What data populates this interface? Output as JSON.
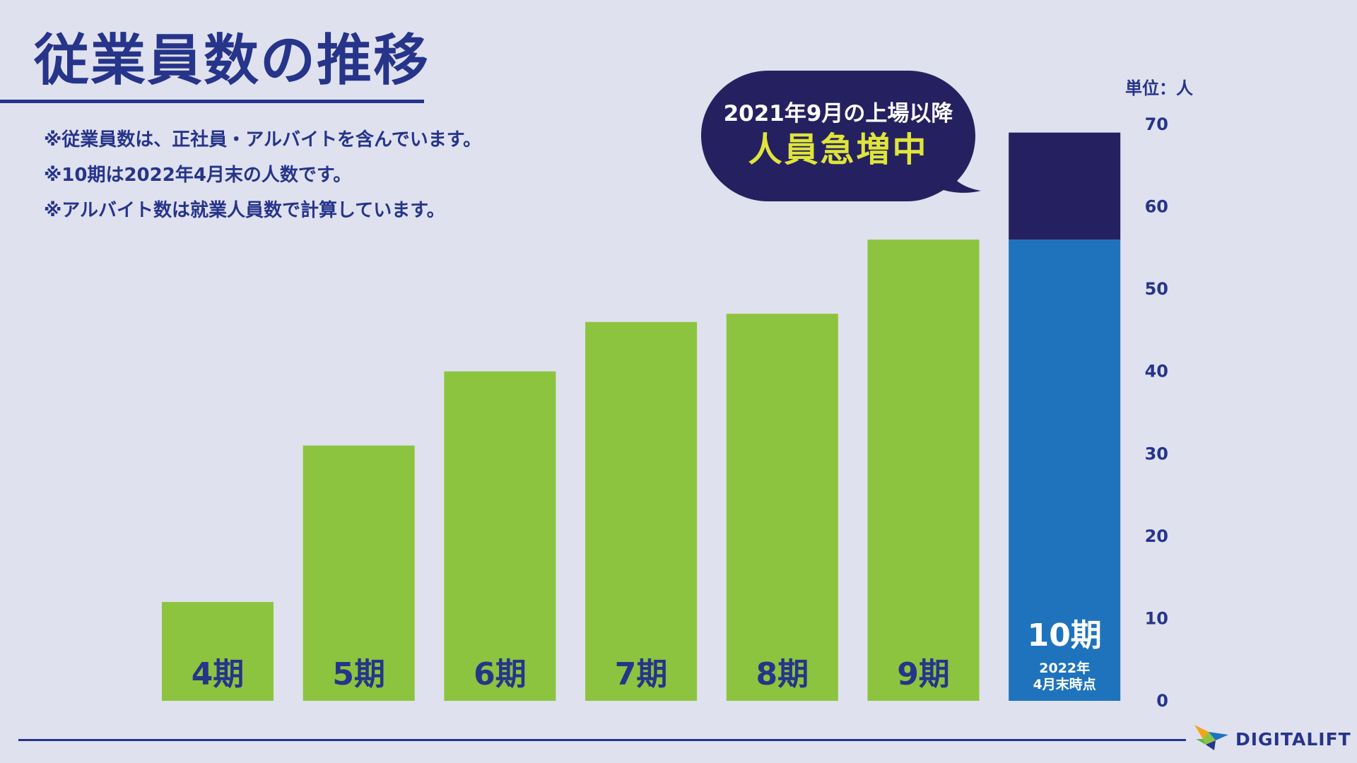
{
  "page": {
    "title": "従業員数の推移",
    "notes": [
      "※従業員数は、正社員・アルバイトを含んでいます。",
      "※10期は2022年4月末の人数です。",
      "※アルバイト数は就業人員数で計算しています。"
    ],
    "callout": {
      "line1": "2021年9月の上場以降",
      "line2": "人員急増中"
    },
    "brand": "DIGITALIFT",
    "logo_icon": "bird-logo-icon"
  },
  "chart_data": {
    "type": "bar",
    "stacked": true,
    "categories": [
      "4期",
      "5期",
      "6期",
      "7期",
      "8期",
      "9期",
      "10期"
    ],
    "category_sublabels": [
      "",
      "",
      "",
      "",
      "",
      "",
      "2022年\n4月末時点"
    ],
    "series": [
      {
        "values": [
          12,
          31,
          40,
          46,
          47,
          56,
          56
        ],
        "colors": [
          "#8cc43f",
          "#8cc43f",
          "#8cc43f",
          "#8cc43f",
          "#8cc43f",
          "#8cc43f",
          "#1e73bc"
        ]
      },
      {
        "values": [
          0,
          0,
          0,
          0,
          0,
          0,
          13
        ],
        "color": "#252160"
      }
    ],
    "unit_label": "単位：人",
    "ylim": [
      0,
      70
    ],
    "yticks": [
      0,
      10,
      20,
      30,
      40,
      50,
      60,
      70
    ],
    "y_axis_position": "right",
    "grid": false,
    "legend": "none",
    "label_color": "#26348a",
    "highlight_label_color": "#ffffff"
  }
}
